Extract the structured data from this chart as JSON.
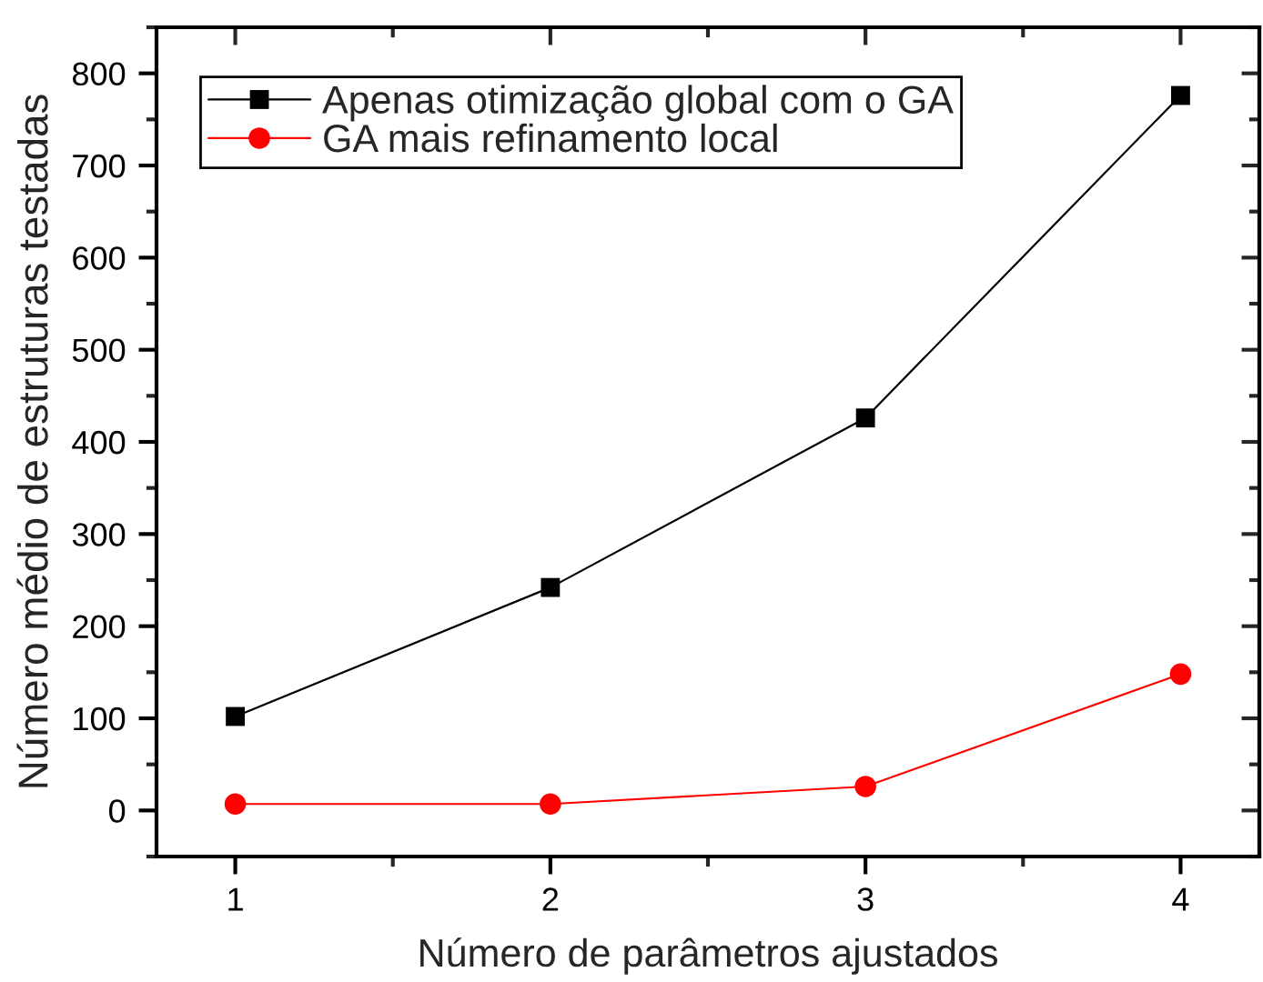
{
  "chart_data": {
    "type": "line",
    "xlabel": "Número de parâmetros ajustados",
    "ylabel": "Número médio de estruturas testadas",
    "x": [
      1,
      2,
      3,
      4
    ],
    "series": [
      {
        "name": "Apenas otimização global com o GA",
        "color": "#000000",
        "marker": "square",
        "values": [
          102,
          242,
          426,
          776
        ]
      },
      {
        "name": "GA mais refinamento local",
        "color": "#ff0000",
        "marker": "circle",
        "values": [
          7,
          7,
          26,
          148
        ]
      }
    ],
    "xlim": [
      0.75,
      4.25
    ],
    "xticks": [
      1,
      2,
      3,
      4
    ],
    "ylim": [
      -50,
      850
    ],
    "yticks": [
      0,
      100,
      200,
      300,
      400,
      500,
      600,
      700,
      800
    ],
    "legend": "top left",
    "line_style": "solid"
  }
}
